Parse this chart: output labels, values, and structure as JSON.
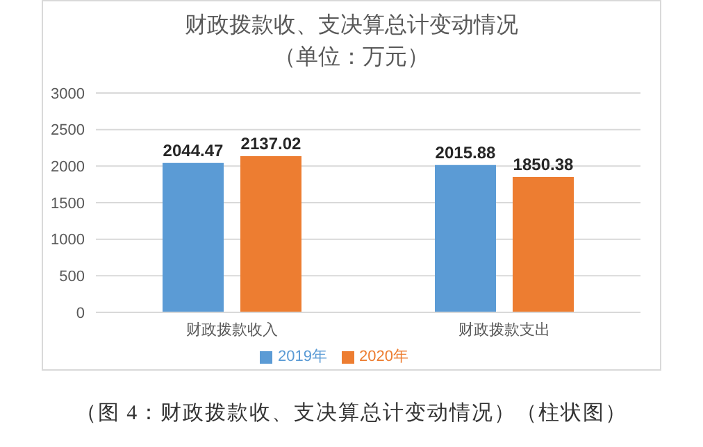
{
  "chart_data": {
    "type": "bar",
    "title": "财政拨款收、支决算总计变动情况",
    "subtitle": "（单位：万元）",
    "categories": [
      "财政拨款收入",
      "财政拨款支出"
    ],
    "series": [
      {
        "name": "2019年",
        "color": "#5b9bd5",
        "values": [
          2044.47,
          2015.88
        ]
      },
      {
        "name": "2020年",
        "color": "#ed7d31",
        "values": [
          2137.02,
          1850.38
        ]
      }
    ],
    "ylim": [
      0,
      3000
    ],
    "yticks": [
      0,
      500,
      1000,
      1500,
      2000,
      2500,
      3000
    ],
    "grid": "y",
    "legend": "bottom",
    "data_labels": true,
    "annotations": [
      "（图 4：财政拨款收、支决算总计变动情况）（柱状图）"
    ]
  }
}
